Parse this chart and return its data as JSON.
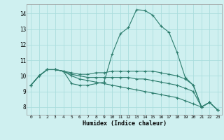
{
  "xlabel": "Humidex (Indice chaleur)",
  "bg_color": "#cff0f0",
  "grid_color": "#aadddd",
  "line_color": "#2d7d6e",
  "marker": "+",
  "xlim": [
    -0.5,
    23.5
  ],
  "ylim": [
    7.5,
    14.6
  ],
  "xticks": [
    0,
    1,
    2,
    3,
    4,
    5,
    6,
    7,
    8,
    9,
    10,
    11,
    12,
    13,
    14,
    15,
    16,
    17,
    18,
    19,
    20,
    21,
    22,
    23
  ],
  "yticks": [
    8,
    9,
    10,
    11,
    12,
    13,
    14
  ],
  "lines": [
    [
      9.4,
      10.0,
      10.4,
      10.4,
      10.3,
      9.5,
      9.4,
      9.4,
      9.5,
      9.6,
      11.4,
      12.7,
      13.1,
      14.25,
      14.2,
      13.9,
      13.2,
      12.8,
      11.5,
      9.9,
      9.4,
      8.0,
      8.3,
      7.8
    ],
    [
      9.4,
      10.0,
      10.4,
      10.4,
      10.3,
      10.2,
      10.1,
      10.1,
      10.2,
      10.2,
      10.3,
      10.3,
      10.3,
      10.3,
      10.3,
      10.3,
      10.2,
      10.1,
      10.0,
      9.8,
      9.4,
      8.0,
      8.3,
      7.8
    ],
    [
      9.4,
      10.0,
      10.4,
      10.4,
      10.3,
      10.1,
      10.0,
      9.9,
      9.9,
      9.9,
      9.9,
      9.9,
      9.9,
      9.8,
      9.8,
      9.7,
      9.6,
      9.5,
      9.4,
      9.2,
      9.0,
      8.0,
      8.3,
      7.8
    ],
    [
      9.4,
      10.0,
      10.4,
      10.4,
      10.3,
      10.0,
      9.8,
      9.7,
      9.6,
      9.5,
      9.4,
      9.3,
      9.2,
      9.1,
      9.0,
      8.9,
      8.8,
      8.7,
      8.6,
      8.4,
      8.2,
      8.0,
      8.3,
      7.8
    ]
  ]
}
